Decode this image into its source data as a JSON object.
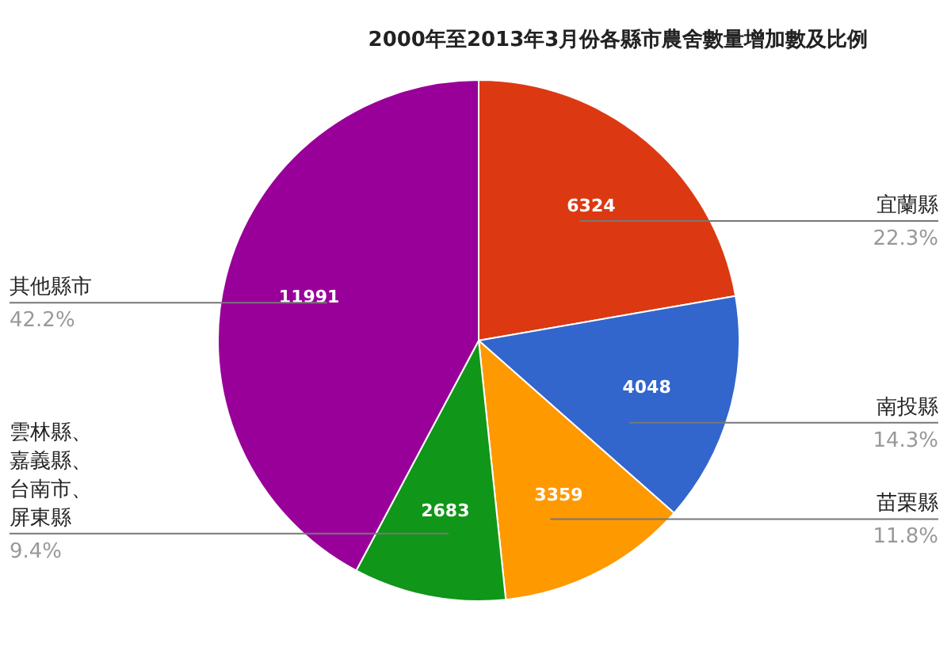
{
  "chart_data": {
    "type": "pie",
    "title": "2000年至2013年3月份各縣市農舍數量增加數及比例",
    "categories": [
      "宜蘭縣",
      "南投縣",
      "苗栗縣",
      "雲林縣、嘉義縣、台南市、屏東縣",
      "其他縣市"
    ],
    "values": [
      6324,
      4048,
      3359,
      2683,
      11991
    ],
    "colors": [
      "#dc3912",
      "#3366cc",
      "#ff9900",
      "#109618",
      "#990099"
    ],
    "data_labels": true,
    "annotations": [
      "22.3%",
      "14.3%",
      "11.8%",
      "9.4%",
      "42.2%"
    ],
    "legend": false
  }
}
